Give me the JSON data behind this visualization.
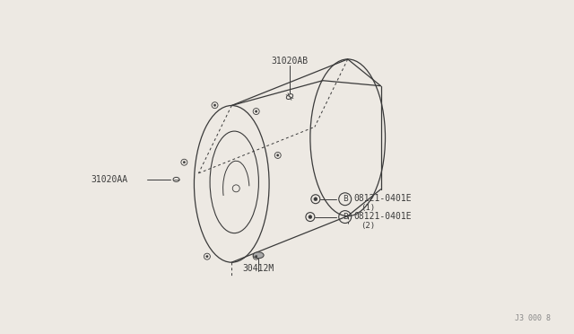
{
  "bg_color": "#ede9e3",
  "line_color": "#3a3a3a",
  "watermark": "J3 000 8",
  "label_31020AB": "31020AB",
  "label_31020AA": "31020AA",
  "label_B1": "08121-0401E",
  "label_B1_sub": "(1)",
  "label_B2": "08121-0401E",
  "label_B2_sub": "(2)",
  "label_30412M": "30412M",
  "font_size": 7.0
}
